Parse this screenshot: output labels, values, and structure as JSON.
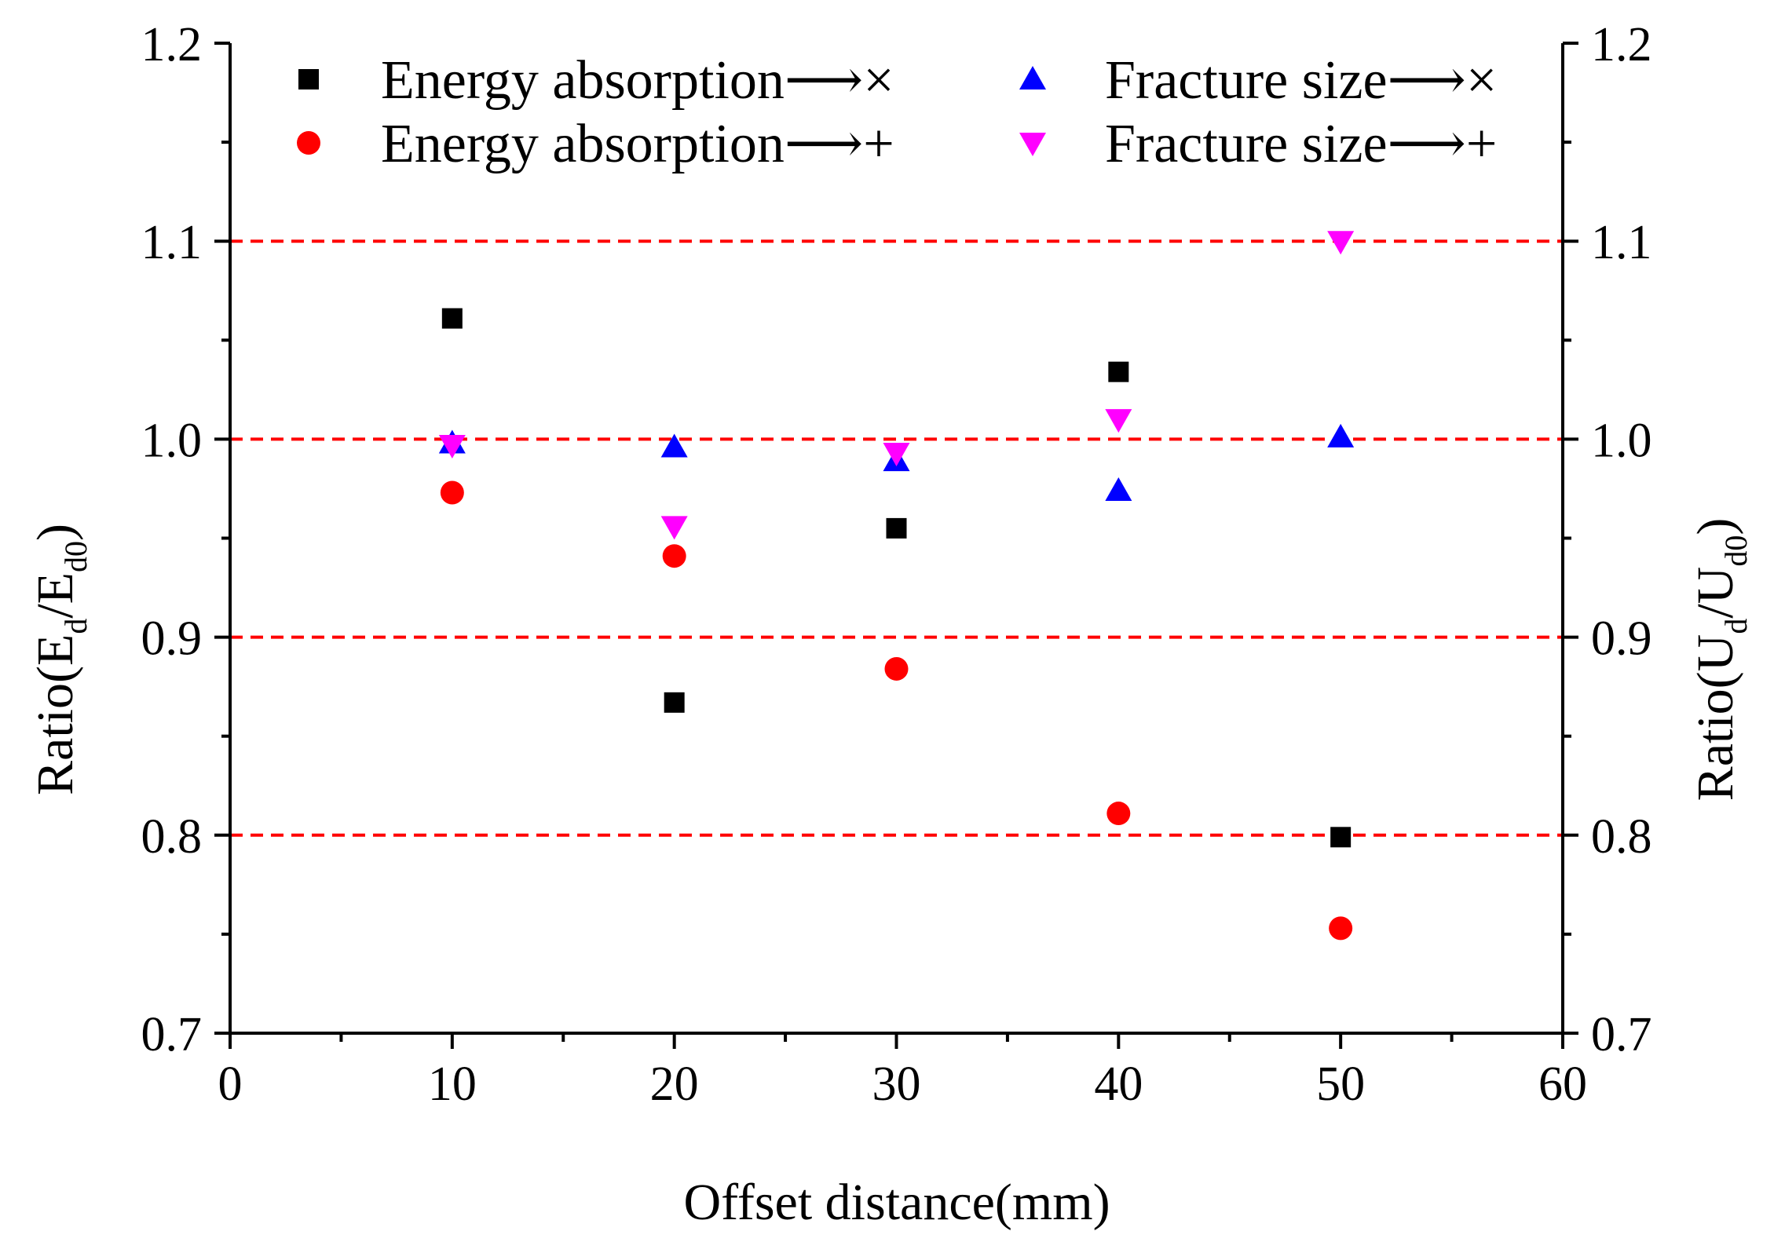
{
  "chart_data": {
    "type": "scatter",
    "xlabel": "Offset distance(mm)",
    "ylabel_left": {
      "main": "Ratio(E",
      "sub1": "d",
      "mid": "/E",
      "sub2": "d0",
      "end": ")"
    },
    "ylabel_right": {
      "main": "Ratio(U",
      "sub1": "d",
      "mid": "/U",
      "sub2": "d0",
      "end": ")"
    },
    "xlim": [
      0,
      60
    ],
    "ylim": [
      0.7,
      1.2
    ],
    "x_ticks": [
      0,
      10,
      20,
      30,
      40,
      50,
      60
    ],
    "x_tick_labels": [
      "0",
      "10",
      "20",
      "30",
      "40",
      "50",
      "60"
    ],
    "y_ticks": [
      0.7,
      0.8,
      0.9,
      1.0,
      1.1,
      1.2
    ],
    "y_tick_labels": [
      "0.7",
      "0.8",
      "0.9",
      "1.0",
      "1.1",
      "1.2"
    ],
    "reference_lines": [
      0.8,
      0.9,
      1.0,
      1.1
    ],
    "reference_line_color": "#ff0000",
    "legend_position": "top",
    "series": [
      {
        "name": "Energy absorption⟶×",
        "marker": "square",
        "color": "#000000",
        "points": [
          [
            10,
            1.061
          ],
          [
            20,
            0.867
          ],
          [
            30,
            0.955
          ],
          [
            40,
            1.034
          ],
          [
            50,
            0.799
          ]
        ]
      },
      {
        "name": "Energy absorption⟶+",
        "marker": "circle",
        "color": "#ff0000",
        "points": [
          [
            10,
            0.973
          ],
          [
            20,
            0.941
          ],
          [
            30,
            0.884
          ],
          [
            40,
            0.811
          ],
          [
            50,
            0.753
          ]
        ]
      },
      {
        "name": "Fracture size⟶×",
        "marker": "triangle-up",
        "color": "#0000ff",
        "points": [
          [
            10,
            0.998
          ],
          [
            20,
            0.996
          ],
          [
            30,
            0.989
          ],
          [
            40,
            0.974
          ],
          [
            50,
            1.001
          ]
        ]
      },
      {
        "name": "Fracture size⟶+",
        "marker": "triangle-down",
        "color": "#ff00ff",
        "points": [
          [
            10,
            0.997
          ],
          [
            20,
            0.956
          ],
          [
            30,
            0.993
          ],
          [
            40,
            1.01
          ],
          [
            50,
            1.1
          ]
        ]
      }
    ]
  }
}
